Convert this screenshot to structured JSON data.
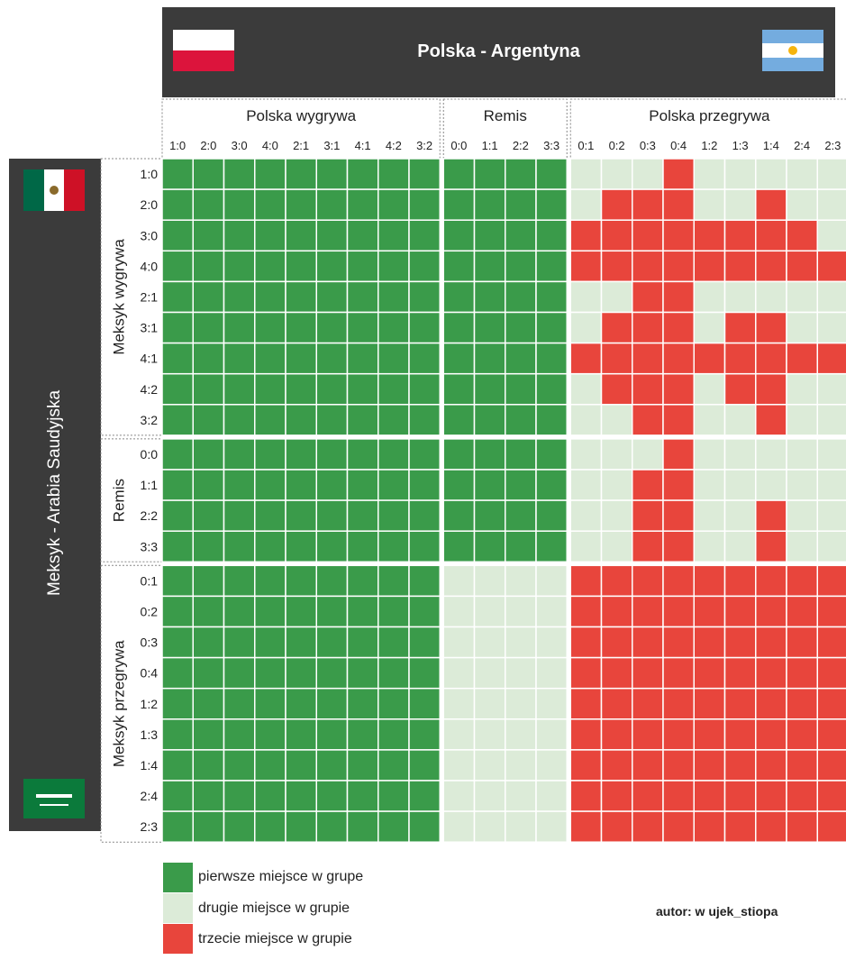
{
  "title": "Polska - Argentyna",
  "left_title": "Meksyk - Arabia Saudyjska",
  "author": "autor: w ujek_stiopa",
  "colors": {
    "first": "#3a9b4a",
    "second": "#dcebd8",
    "third": "#e8453c",
    "band": "#3b3b3b"
  },
  "icons": {
    "poland": "poland-flag-icon",
    "argentina": "argentina-flag-icon",
    "mexico": "mexico-flag-icon",
    "saudi": "saudi-flag-icon"
  },
  "chart_data": {
    "type": "heatmap",
    "col_groups": [
      {
        "label": "Polska wygrywa",
        "cols": [
          "1:0",
          "2:0",
          "3:0",
          "4:0",
          "2:1",
          "3:1",
          "4:1",
          "4:2",
          "3:2"
        ]
      },
      {
        "label": "Remis",
        "cols": [
          "0:0",
          "1:1",
          "2:2",
          "3:3"
        ]
      },
      {
        "label": "Polska przegrywa",
        "cols": [
          "0:1",
          "0:2",
          "0:3",
          "0:4",
          "1:2",
          "1:3",
          "1:4",
          "2:4",
          "2:3"
        ]
      }
    ],
    "row_groups": [
      {
        "label": "Meksyk wygrywa",
        "rows": [
          "1:0",
          "2:0",
          "3:0",
          "4:0",
          "2:1",
          "3:1",
          "4:1",
          "4:2",
          "3:2"
        ]
      },
      {
        "label": "Remis",
        "rows": [
          "0:0",
          "1:1",
          "2:2",
          "3:3"
        ]
      },
      {
        "label": "Meksyk przegrywa",
        "rows": [
          "0:1",
          "0:2",
          "0:3",
          "0:4",
          "1:2",
          "1:3",
          "1:4",
          "2:4",
          "2:3"
        ]
      }
    ],
    "legend": [
      {
        "value": 1,
        "label": "pierwsze miejsce w grupe"
      },
      {
        "value": 2,
        "label": "drugie miejsce w grupie"
      },
      {
        "value": 3,
        "label": "trzecie miejsce w grupie"
      }
    ],
    "lose_block": [
      [
        2,
        2,
        2,
        3,
        2,
        2,
        2,
        2,
        2
      ],
      [
        2,
        3,
        3,
        3,
        2,
        2,
        3,
        2,
        2
      ],
      [
        3,
        3,
        3,
        3,
        3,
        3,
        3,
        3,
        2
      ],
      [
        3,
        3,
        3,
        3,
        3,
        3,
        3,
        3,
        3
      ],
      [
        2,
        2,
        3,
        3,
        2,
        2,
        2,
        2,
        2
      ],
      [
        2,
        3,
        3,
        3,
        2,
        3,
        3,
        2,
        2
      ],
      [
        3,
        3,
        3,
        3,
        3,
        3,
        3,
        3,
        3
      ],
      [
        2,
        3,
        3,
        3,
        2,
        3,
        3,
        2,
        2
      ],
      [
        2,
        2,
        3,
        3,
        2,
        2,
        3,
        2,
        2
      ],
      [
        2,
        2,
        2,
        3,
        2,
        2,
        2,
        2,
        2
      ],
      [
        2,
        2,
        3,
        3,
        2,
        2,
        2,
        2,
        2
      ],
      [
        2,
        2,
        3,
        3,
        2,
        2,
        3,
        2,
        2
      ],
      [
        2,
        2,
        3,
        3,
        2,
        2,
        3,
        2,
        2
      ]
    ]
  }
}
